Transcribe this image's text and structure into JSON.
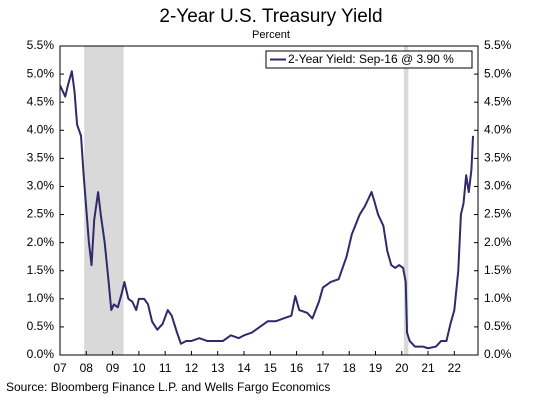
{
  "chart_data": {
    "type": "line",
    "title": "2-Year U.S. Treasury Yield",
    "subtitle": "Percent",
    "source": "Source: Bloomberg Finance L.P. and Wells Fargo Economics",
    "x": [
      2007.0,
      2007.1,
      2007.2,
      2007.3,
      2007.45,
      2007.55,
      2007.65,
      2007.8,
      2007.9,
      2008.0,
      2008.1,
      2008.2,
      2008.3,
      2008.45,
      2008.55,
      2008.7,
      2008.85,
      2008.95,
      2009.05,
      2009.2,
      2009.35,
      2009.45,
      2009.6,
      2009.75,
      2009.9,
      2010.0,
      2010.2,
      2010.35,
      2010.5,
      2010.7,
      2010.9,
      2011.1,
      2011.25,
      2011.45,
      2011.6,
      2011.8,
      2012.0,
      2012.3,
      2012.6,
      2012.9,
      2013.2,
      2013.5,
      2013.8,
      2014.0,
      2014.3,
      2014.6,
      2014.9,
      2015.2,
      2015.5,
      2015.8,
      2015.95,
      2016.1,
      2016.4,
      2016.6,
      2016.85,
      2017.0,
      2017.3,
      2017.6,
      2017.9,
      2018.1,
      2018.4,
      2018.6,
      2018.85,
      2018.95,
      2019.1,
      2019.3,
      2019.45,
      2019.6,
      2019.75,
      2019.9,
      2020.05,
      2020.15,
      2020.2,
      2020.3,
      2020.5,
      2020.8,
      2021.0,
      2021.3,
      2021.5,
      2021.7,
      2021.85,
      2022.0,
      2022.15,
      2022.25,
      2022.35,
      2022.45,
      2022.55,
      2022.65,
      2022.71
    ],
    "series": [
      {
        "name": "2-Year Yield: Sep-16 @ 3.90 %",
        "color": "#2e2a6b",
        "values": [
          4.8,
          4.7,
          4.6,
          4.8,
          5.05,
          4.7,
          4.1,
          3.9,
          3.2,
          2.6,
          2.0,
          1.6,
          2.4,
          2.9,
          2.5,
          2.0,
          1.3,
          0.8,
          0.9,
          0.85,
          1.1,
          1.3,
          1.0,
          0.95,
          0.8,
          1.0,
          1.0,
          0.9,
          0.6,
          0.45,
          0.55,
          0.8,
          0.7,
          0.4,
          0.2,
          0.25,
          0.25,
          0.3,
          0.25,
          0.25,
          0.25,
          0.35,
          0.3,
          0.35,
          0.4,
          0.5,
          0.6,
          0.6,
          0.65,
          0.7,
          1.05,
          0.8,
          0.75,
          0.65,
          0.95,
          1.2,
          1.3,
          1.35,
          1.75,
          2.15,
          2.5,
          2.65,
          2.9,
          2.75,
          2.5,
          2.3,
          1.85,
          1.6,
          1.55,
          1.6,
          1.55,
          1.3,
          0.4,
          0.25,
          0.15,
          0.15,
          0.12,
          0.15,
          0.25,
          0.25,
          0.55,
          0.8,
          1.5,
          2.5,
          2.7,
          3.2,
          2.9,
          3.3,
          3.9
        ]
      }
    ],
    "shaded_periods": [
      [
        2007.92,
        2009.42
      ],
      [
        2020.08,
        2020.25
      ]
    ],
    "shade_color": "#d9d9d9",
    "xlim": [
      2007,
      2022.9
    ],
    "xticks": [
      {
        "value": 2007,
        "label": "07"
      },
      {
        "value": 2008,
        "label": "08"
      },
      {
        "value": 2009,
        "label": "09"
      },
      {
        "value": 2010,
        "label": "10"
      },
      {
        "value": 2011,
        "label": "11"
      },
      {
        "value": 2012,
        "label": "12"
      },
      {
        "value": 2013,
        "label": "13"
      },
      {
        "value": 2014,
        "label": "14"
      },
      {
        "value": 2015,
        "label": "15"
      },
      {
        "value": 2016,
        "label": "16"
      },
      {
        "value": 2017,
        "label": "17"
      },
      {
        "value": 2018,
        "label": "18"
      },
      {
        "value": 2019,
        "label": "19"
      },
      {
        "value": 2020,
        "label": "20"
      },
      {
        "value": 2021,
        "label": "21"
      },
      {
        "value": 2022,
        "label": "22"
      }
    ],
    "ylim": [
      0,
      5.5
    ],
    "yticks": [
      {
        "value": 0,
        "label": "0.0%"
      },
      {
        "value": 0.5,
        "label": "0.5%"
      },
      {
        "value": 1,
        "label": "1.0%"
      },
      {
        "value": 1.5,
        "label": "1.5%"
      },
      {
        "value": 2,
        "label": "2.0%"
      },
      {
        "value": 2.5,
        "label": "2.5%"
      },
      {
        "value": 3,
        "label": "3.0%"
      },
      {
        "value": 3.5,
        "label": "3.5%"
      },
      {
        "value": 4,
        "label": "4.0%"
      },
      {
        "value": 4.5,
        "label": "4.5%"
      },
      {
        "value": 5,
        "label": "5.0%"
      },
      {
        "value": 5.5,
        "label": "5.5%"
      }
    ],
    "legend": "top-right"
  }
}
